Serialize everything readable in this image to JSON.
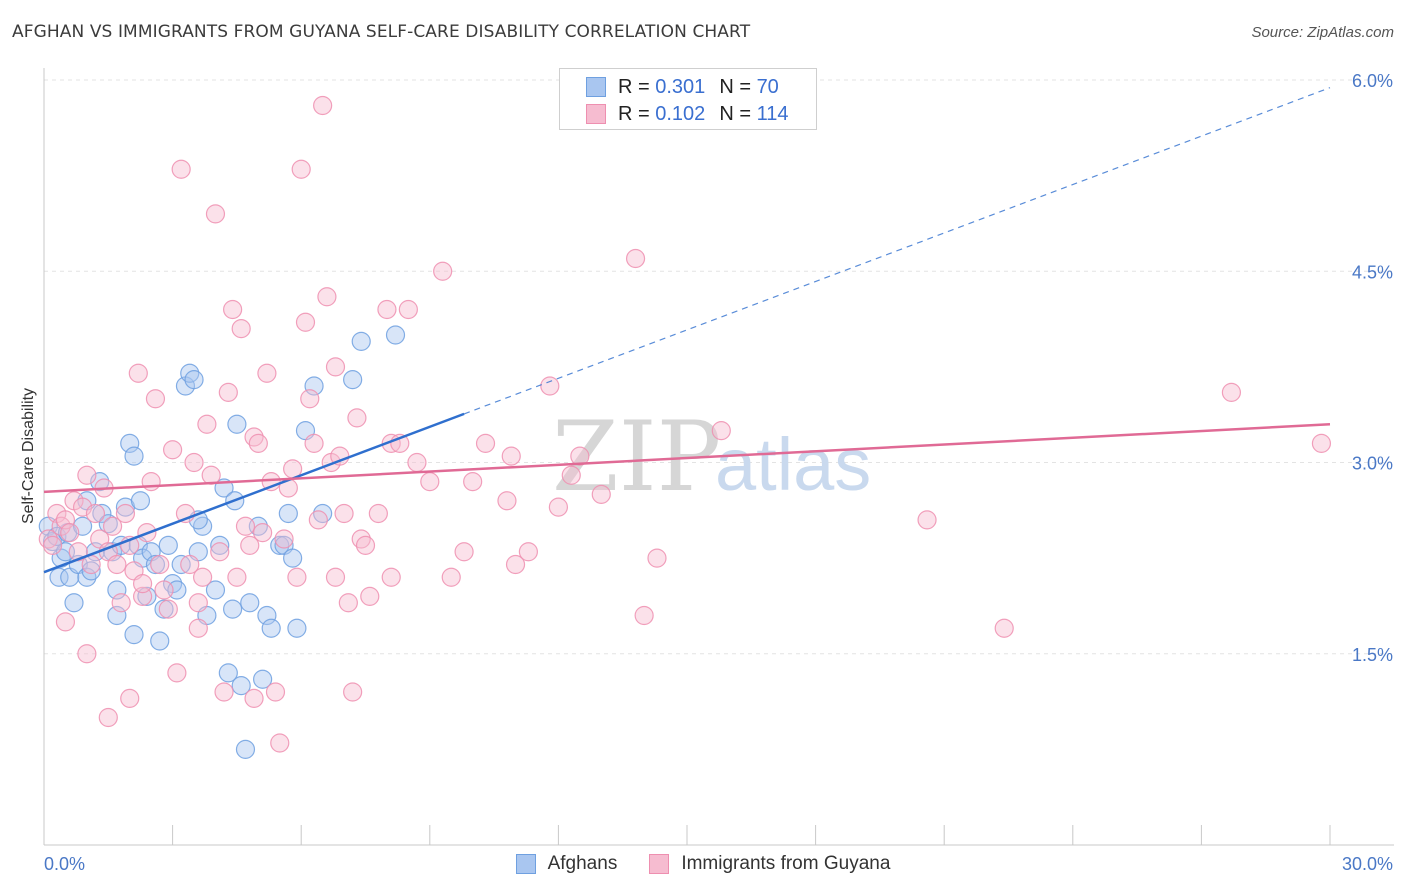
{
  "title": "AFGHAN VS IMMIGRANTS FROM GUYANA SELF-CARE DISABILITY CORRELATION CHART",
  "source": "Source: ZipAtlas.com",
  "watermark": {
    "zip": "ZIP",
    "atlas": "atlas"
  },
  "stats": [
    {
      "r_label": "R =",
      "r_value": "0.301",
      "n_label": "N =",
      "n_value": "70"
    },
    {
      "r_label": "R =",
      "r_value": "0.102",
      "n_label": "N =",
      "n_value": "114"
    }
  ],
  "legend": [
    "Afghans",
    "Immigrants from Guyana"
  ],
  "chart_data": {
    "type": "scatter",
    "title": "AFGHAN VS IMMIGRANTS FROM GUYANA SELF-CARE DISABILITY CORRELATION CHART",
    "xlabel": "",
    "ylabel": "Self-Care Disability",
    "xlim": [
      0,
      30
    ],
    "ylim": [
      0,
      6.25
    ],
    "x_tick_labels": [
      "0.0%",
      "30.0%"
    ],
    "x_tick_label_values": [
      0,
      30
    ],
    "y_ticks": [
      1.5,
      3.0,
      4.5,
      6.0
    ],
    "y_tick_labels": [
      "1.5%",
      "3.0%",
      "4.5%",
      "6.0%"
    ],
    "x_minor_ticks": [
      0,
      3,
      6,
      9,
      12,
      15,
      18,
      21,
      24,
      27,
      30
    ],
    "grid": true,
    "series": [
      {
        "name": "Afghans",
        "color": "#6fa0e0",
        "fill": "#a9c6f0",
        "line_color": "#2f6fce",
        "R": 0.301,
        "N": 70,
        "trend": {
          "x0": 0.0,
          "y0": 2.14,
          "x1": 30.0,
          "y1": 5.94,
          "solid_until_x": 9.8
        },
        "points": [
          [
            0.1,
            2.5
          ],
          [
            0.2,
            2.38
          ],
          [
            0.3,
            2.42
          ],
          [
            0.35,
            2.1
          ],
          [
            0.4,
            2.25
          ],
          [
            0.5,
            2.3
          ],
          [
            0.55,
            2.45
          ],
          [
            0.6,
            2.1
          ],
          [
            0.7,
            1.9
          ],
          [
            0.8,
            2.2
          ],
          [
            0.9,
            2.5
          ],
          [
            1.0,
            2.7
          ],
          [
            1.0,
            2.1
          ],
          [
            1.1,
            2.15
          ],
          [
            1.2,
            2.3
          ],
          [
            1.3,
            2.85
          ],
          [
            1.35,
            2.6
          ],
          [
            1.5,
            2.52
          ],
          [
            1.6,
            2.3
          ],
          [
            1.7,
            2.0
          ],
          [
            1.8,
            2.35
          ],
          [
            1.9,
            2.65
          ],
          [
            2.0,
            3.15
          ],
          [
            2.1,
            3.05
          ],
          [
            2.2,
            2.35
          ],
          [
            2.25,
            2.7
          ],
          [
            2.3,
            2.25
          ],
          [
            2.4,
            1.95
          ],
          [
            2.5,
            2.3
          ],
          [
            2.6,
            2.2
          ],
          [
            2.7,
            1.6
          ],
          [
            2.8,
            1.85
          ],
          [
            2.9,
            2.35
          ],
          [
            3.0,
            2.05
          ],
          [
            3.1,
            2.0
          ],
          [
            3.2,
            2.2
          ],
          [
            3.3,
            3.6
          ],
          [
            3.4,
            3.7
          ],
          [
            3.5,
            3.65
          ],
          [
            3.6,
            2.3
          ],
          [
            3.7,
            2.5
          ],
          [
            3.8,
            1.8
          ],
          [
            4.0,
            2.0
          ],
          [
            4.1,
            2.35
          ],
          [
            4.2,
            2.8
          ],
          [
            4.3,
            1.35
          ],
          [
            4.4,
            1.85
          ],
          [
            4.45,
            2.7
          ],
          [
            4.5,
            3.3
          ],
          [
            4.6,
            1.25
          ],
          [
            4.7,
            0.75
          ],
          [
            4.8,
            1.9
          ],
          [
            5.0,
            2.5
          ],
          [
            5.1,
            1.3
          ],
          [
            5.2,
            1.8
          ],
          [
            5.3,
            1.7
          ],
          [
            5.5,
            2.35
          ],
          [
            5.6,
            2.35
          ],
          [
            5.7,
            2.6
          ],
          [
            5.8,
            2.25
          ],
          [
            5.9,
            1.7
          ],
          [
            6.1,
            3.25
          ],
          [
            6.3,
            3.6
          ],
          [
            6.5,
            2.6
          ],
          [
            7.2,
            3.65
          ],
          [
            7.4,
            3.95
          ],
          [
            8.2,
            4.0
          ],
          [
            1.7,
            1.8
          ],
          [
            2.1,
            1.65
          ],
          [
            3.6,
            2.55
          ]
        ]
      },
      {
        "name": "Immigrants from Guyana",
        "color": "#ee8fb0",
        "fill": "#f6bcd0",
        "line_color": "#e06a95",
        "R": 0.102,
        "N": 114,
        "trend": {
          "x0": 0.0,
          "y0": 2.77,
          "x1": 30.0,
          "y1": 3.3,
          "solid_until_x": 30.0
        },
        "points": [
          [
            0.1,
            2.4
          ],
          [
            0.2,
            2.35
          ],
          [
            0.3,
            2.6
          ],
          [
            0.4,
            2.5
          ],
          [
            0.5,
            2.55
          ],
          [
            0.6,
            2.45
          ],
          [
            0.7,
            2.7
          ],
          [
            0.8,
            2.3
          ],
          [
            0.9,
            2.65
          ],
          [
            1.0,
            2.9
          ],
          [
            1.1,
            2.2
          ],
          [
            1.2,
            2.6
          ],
          [
            1.3,
            2.4
          ],
          [
            1.4,
            2.8
          ],
          [
            1.5,
            2.3
          ],
          [
            1.6,
            2.5
          ],
          [
            1.7,
            2.2
          ],
          [
            1.8,
            1.9
          ],
          [
            1.9,
            2.6
          ],
          [
            2.0,
            2.35
          ],
          [
            2.1,
            2.15
          ],
          [
            2.2,
            3.7
          ],
          [
            2.3,
            1.95
          ],
          [
            2.4,
            2.45
          ],
          [
            2.5,
            2.85
          ],
          [
            2.6,
            3.5
          ],
          [
            2.7,
            2.2
          ],
          [
            2.8,
            2.0
          ],
          [
            2.9,
            1.85
          ],
          [
            3.0,
            3.1
          ],
          [
            3.1,
            1.35
          ],
          [
            3.2,
            5.3
          ],
          [
            3.3,
            2.6
          ],
          [
            3.4,
            2.2
          ],
          [
            3.5,
            3.0
          ],
          [
            3.6,
            1.9
          ],
          [
            3.7,
            2.1
          ],
          [
            3.8,
            3.3
          ],
          [
            3.9,
            2.9
          ],
          [
            4.0,
            4.95
          ],
          [
            4.1,
            2.3
          ],
          [
            4.2,
            1.2
          ],
          [
            4.3,
            3.55
          ],
          [
            4.4,
            4.2
          ],
          [
            4.5,
            2.1
          ],
          [
            4.6,
            4.05
          ],
          [
            4.7,
            2.5
          ],
          [
            4.8,
            2.35
          ],
          [
            4.9,
            3.2
          ],
          [
            5.0,
            3.15
          ],
          [
            5.1,
            2.45
          ],
          [
            5.2,
            3.7
          ],
          [
            5.3,
            2.85
          ],
          [
            5.4,
            1.2
          ],
          [
            5.5,
            0.8
          ],
          [
            5.6,
            2.4
          ],
          [
            5.7,
            2.8
          ],
          [
            5.8,
            2.95
          ],
          [
            5.9,
            2.1
          ],
          [
            6.0,
            5.3
          ],
          [
            6.1,
            4.1
          ],
          [
            6.2,
            3.5
          ],
          [
            6.3,
            3.15
          ],
          [
            6.4,
            2.55
          ],
          [
            6.5,
            5.8
          ],
          [
            6.6,
            4.3
          ],
          [
            6.7,
            3.0
          ],
          [
            6.8,
            3.75
          ],
          [
            6.9,
            3.05
          ],
          [
            7.0,
            2.6
          ],
          [
            7.1,
            1.9
          ],
          [
            7.2,
            1.2
          ],
          [
            7.3,
            3.35
          ],
          [
            7.4,
            2.4
          ],
          [
            7.5,
            2.35
          ],
          [
            7.6,
            1.95
          ],
          [
            7.8,
            2.6
          ],
          [
            8.0,
            4.2
          ],
          [
            8.1,
            3.15
          ],
          [
            8.3,
            3.15
          ],
          [
            8.5,
            4.2
          ],
          [
            8.7,
            3.0
          ],
          [
            9.0,
            2.85
          ],
          [
            9.3,
            4.5
          ],
          [
            9.5,
            2.1
          ],
          [
            9.8,
            2.3
          ],
          [
            10.0,
            2.85
          ],
          [
            10.3,
            3.15
          ],
          [
            10.8,
            2.7
          ],
          [
            11.0,
            2.2
          ],
          [
            11.3,
            2.3
          ],
          [
            11.8,
            3.6
          ],
          [
            12.0,
            2.65
          ],
          [
            12.3,
            2.9
          ],
          [
            12.5,
            3.05
          ],
          [
            13.0,
            2.75
          ],
          [
            14.0,
            1.8
          ],
          [
            14.3,
            2.25
          ],
          [
            0.5,
            1.75
          ],
          [
            1.0,
            1.5
          ],
          [
            1.5,
            1.0
          ],
          [
            2.0,
            1.15
          ],
          [
            3.6,
            1.7
          ],
          [
            4.9,
            1.15
          ],
          [
            13.8,
            4.6
          ],
          [
            15.8,
            3.25
          ],
          [
            20.6,
            2.55
          ],
          [
            27.7,
            3.55
          ],
          [
            22.4,
            1.7
          ],
          [
            29.8,
            3.15
          ],
          [
            8.1,
            2.1
          ],
          [
            10.9,
            3.05
          ],
          [
            6.8,
            2.1
          ],
          [
            2.3,
            2.05
          ]
        ]
      }
    ]
  }
}
